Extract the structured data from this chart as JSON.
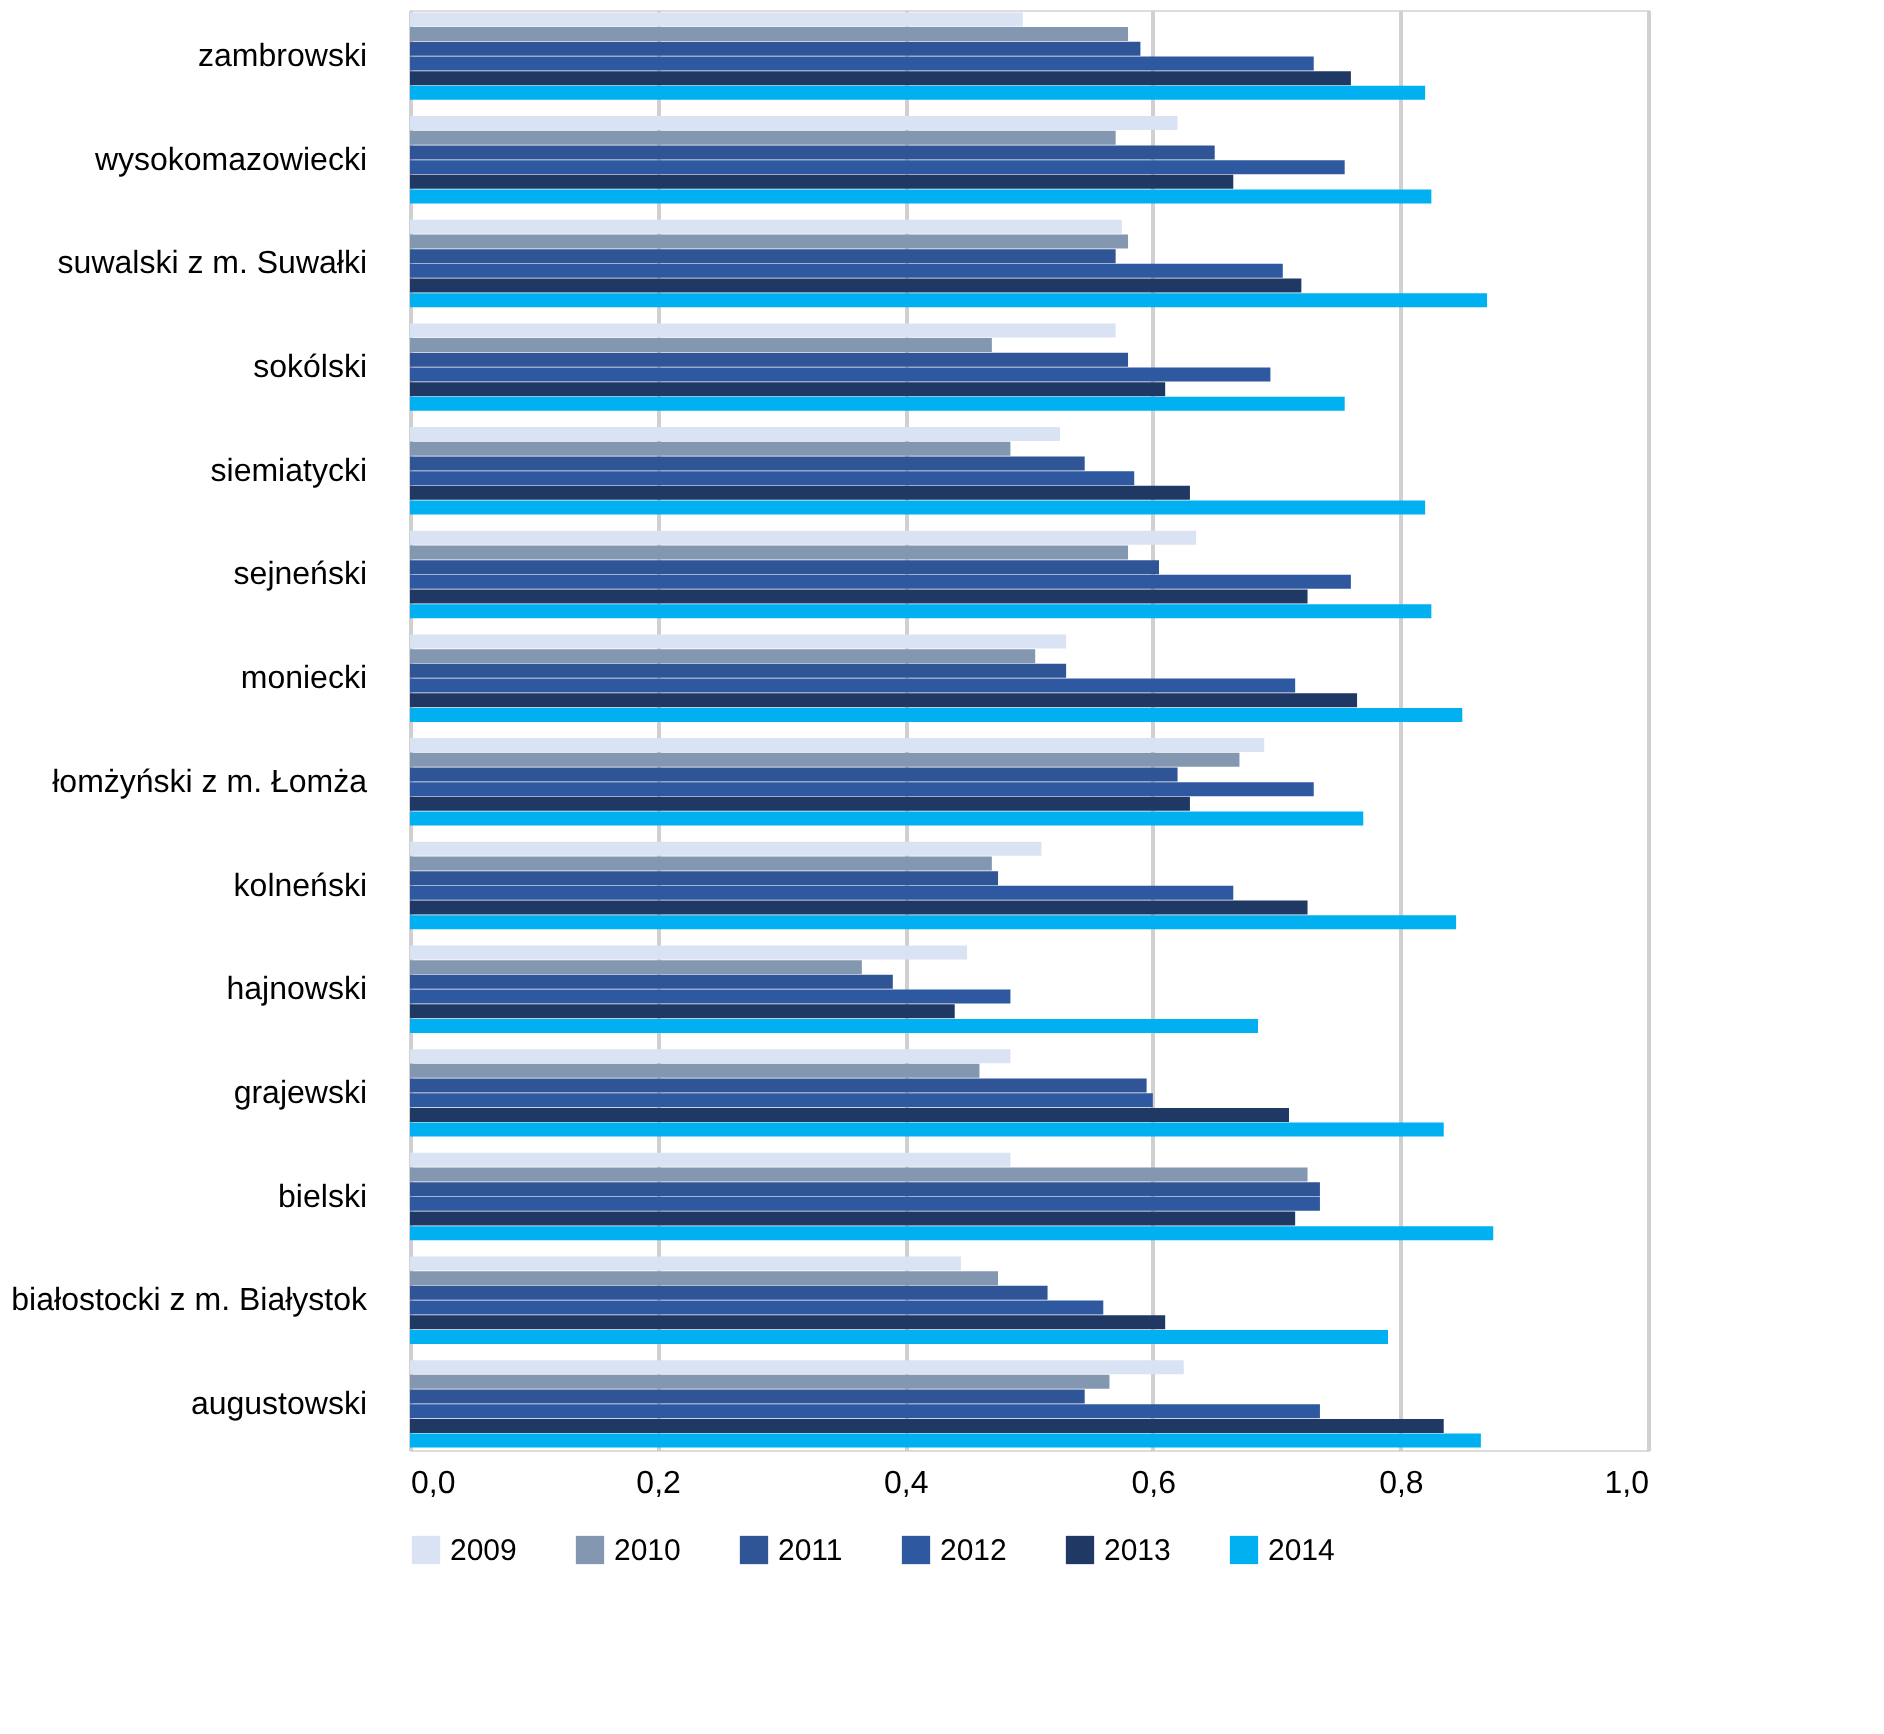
{
  "chart_data": {
    "type": "bar",
    "orientation": "horizontal",
    "categories": [
      "zambrowski",
      "wysokomazowiecki",
      "suwalski z m. Suwałki",
      "sokólski",
      "siemiatycki",
      "sejneński",
      "moniecki",
      "łomżyński z m. Łomża",
      "kolneński",
      "hajnowski",
      "grajewski",
      "bielski",
      "białostocki z m. Białystok",
      "augustowski"
    ],
    "series": [
      {
        "name": "2009",
        "color": "#dae3f3",
        "values": [
          0.495,
          0.62,
          0.575,
          0.57,
          0.525,
          0.635,
          0.53,
          0.69,
          0.51,
          0.45,
          0.485,
          0.485,
          0.445,
          0.625
        ]
      },
      {
        "name": "2010",
        "color": "#8497b0",
        "values": [
          0.58,
          0.57,
          0.58,
          0.47,
          0.485,
          0.58,
          0.505,
          0.67,
          0.47,
          0.365,
          0.46,
          0.725,
          0.475,
          0.565
        ]
      },
      {
        "name": "2011",
        "color": "#2f5597",
        "values": [
          0.59,
          0.65,
          0.57,
          0.58,
          0.545,
          0.605,
          0.53,
          0.62,
          0.475,
          0.39,
          0.595,
          0.735,
          0.515,
          0.545
        ]
      },
      {
        "name": "2012",
        "color": "#2e58a0",
        "values": [
          0.73,
          0.755,
          0.705,
          0.695,
          0.585,
          0.76,
          0.715,
          0.73,
          0.665,
          0.485,
          0.6,
          0.735,
          0.56,
          0.735
        ]
      },
      {
        "name": "2013",
        "color": "#203864",
        "values": [
          0.76,
          0.665,
          0.72,
          0.61,
          0.63,
          0.725,
          0.765,
          0.63,
          0.725,
          0.44,
          0.71,
          0.715,
          0.61,
          0.835
        ]
      },
      {
        "name": "2014",
        "color": "#00b0f0",
        "values": [
          0.82,
          0.825,
          0.87,
          0.755,
          0.82,
          0.825,
          0.85,
          0.77,
          0.845,
          0.685,
          0.835,
          0.875,
          0.79,
          0.865
        ]
      }
    ],
    "xlim": [
      0,
      1
    ],
    "xticks": [
      {
        "value": 0,
        "label": "0,0"
      },
      {
        "value": 0.2,
        "label": "0,2"
      },
      {
        "value": 0.4,
        "label": "0,4"
      },
      {
        "value": 0.6,
        "label": "0,6"
      },
      {
        "value": 0.8,
        "label": "0,8"
      },
      {
        "value": 1,
        "label": "1,0"
      }
    ],
    "grid": "x",
    "legend": "bottom"
  }
}
